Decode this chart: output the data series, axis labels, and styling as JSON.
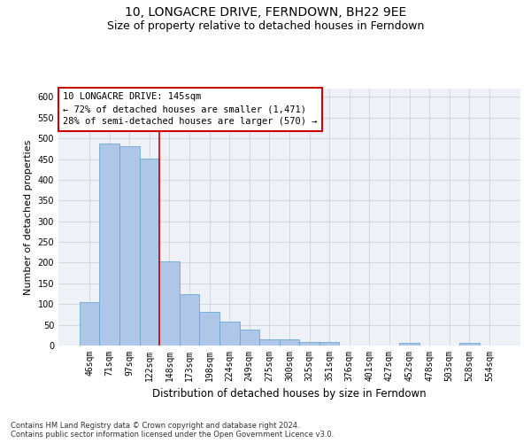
{
  "title": "10, LONGACRE DRIVE, FERNDOWN, BH22 9EE",
  "subtitle": "Size of property relative to detached houses in Ferndown",
  "xlabel": "Distribution of detached houses by size in Ferndown",
  "ylabel": "Number of detached properties",
  "categories": [
    "46sqm",
    "71sqm",
    "97sqm",
    "122sqm",
    "148sqm",
    "173sqm",
    "198sqm",
    "224sqm",
    "249sqm",
    "275sqm",
    "300sqm",
    "325sqm",
    "351sqm",
    "376sqm",
    "401sqm",
    "427sqm",
    "452sqm",
    "478sqm",
    "503sqm",
    "528sqm",
    "554sqm"
  ],
  "values": [
    105,
    487,
    482,
    452,
    203,
    123,
    82,
    57,
    38,
    15,
    15,
    9,
    9,
    1,
    1,
    0,
    7,
    0,
    0,
    7,
    0
  ],
  "bar_color": "#aec6e8",
  "bar_edgecolor": "#5a9fd4",
  "bg_color": "#eef2f8",
  "annotation_text": "10 LONGACRE DRIVE: 145sqm\n← 72% of detached houses are smaller (1,471)\n28% of semi-detached houses are larger (570) →",
  "annotation_box_color": "#ffffff",
  "annotation_box_edgecolor": "#cc0000",
  "property_line_color": "#cc0000",
  "ylim": [
    0,
    620
  ],
  "yticks": [
    0,
    50,
    100,
    150,
    200,
    250,
    300,
    350,
    400,
    450,
    500,
    550,
    600
  ],
  "footer": "Contains HM Land Registry data © Crown copyright and database right 2024.\nContains public sector information licensed under the Open Government Licence v3.0.",
  "title_fontsize": 10,
  "subtitle_fontsize": 9,
  "xlabel_fontsize": 8.5,
  "ylabel_fontsize": 8,
  "tick_fontsize": 7,
  "annotation_fontsize": 7.5,
  "footer_fontsize": 6
}
